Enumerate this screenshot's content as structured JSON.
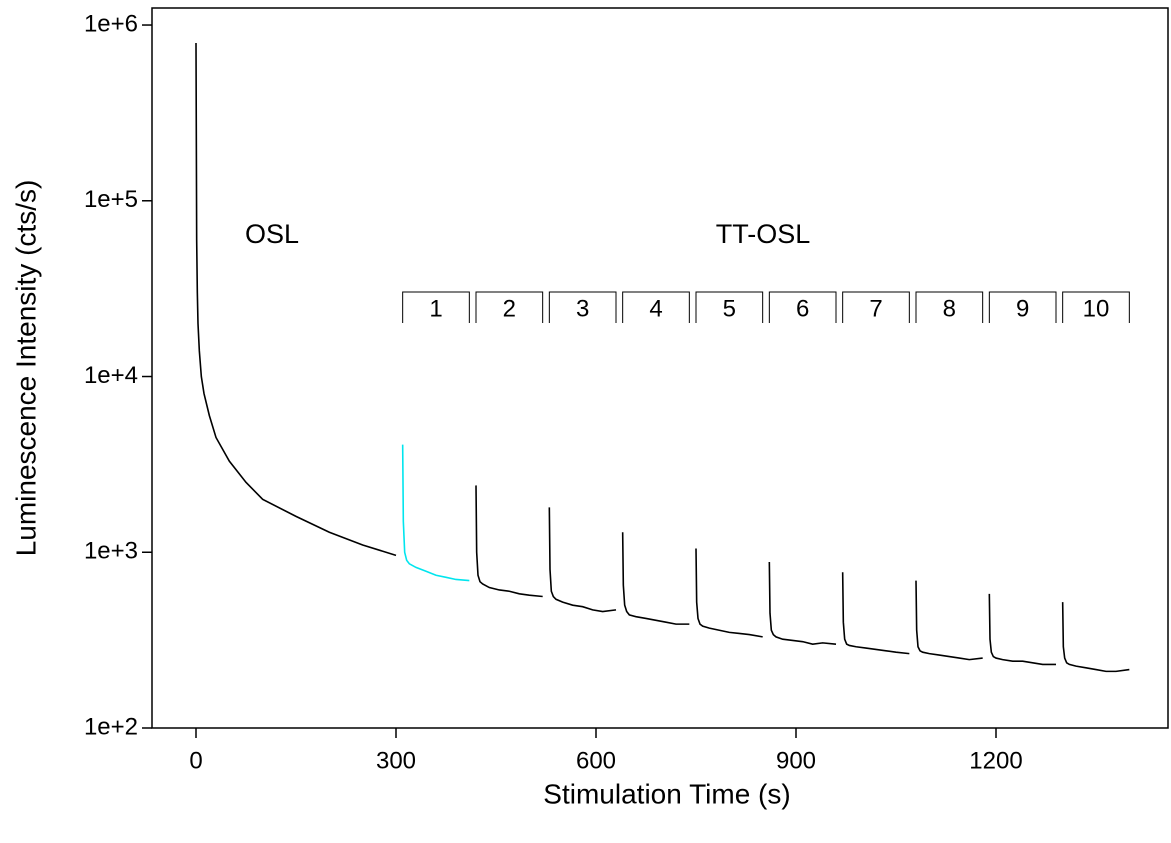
{
  "chart_data": {
    "type": "line",
    "log_y": true,
    "xlabel": "Stimulation Time (s)",
    "ylabel": "Luminescence Intensity (cts/s)",
    "annotations": [
      "OSL",
      "TT-OSL"
    ],
    "segment_labels": [
      "1",
      "2",
      "3",
      "4",
      "5",
      "6",
      "7",
      "8",
      "9",
      "10"
    ],
    "xlim": [
      -66,
      1458
    ],
    "ylim": [
      100,
      1250000
    ],
    "xticks": [
      0,
      300,
      600,
      900,
      1200
    ],
    "yticks": [
      {
        "value": 100,
        "label": "1e+2"
      },
      {
        "value": 1000,
        "label": "1e+3"
      },
      {
        "value": 10000,
        "label": "1e+4"
      },
      {
        "value": 100000,
        "label": "1e+5"
      },
      {
        "value": 1000000,
        "label": "1e+6"
      }
    ],
    "series": [
      {
        "color": "#000000",
        "x": [
          0,
          1,
          2,
          3,
          5,
          8,
          12,
          20,
          30,
          50,
          75,
          100,
          150,
          200,
          250,
          300
        ],
        "values": [
          790000,
          60000,
          30000,
          20000,
          14000,
          10000,
          8000,
          6000,
          4500,
          3300,
          2500,
          2000,
          1600,
          1300,
          1100,
          960
        ]
      },
      {
        "color": "#00e5ee",
        "x": [
          310,
          311,
          313,
          316,
          320,
          330,
          345,
          360,
          375,
          390,
          410
        ],
        "values": [
          4100,
          1500,
          1000,
          900,
          860,
          820,
          780,
          740,
          720,
          700,
          690
        ]
      },
      {
        "color": "#000000",
        "x": [
          420,
          421,
          423,
          426,
          430,
          440,
          455,
          470,
          485,
          500,
          520
        ],
        "values": [
          2400,
          1000,
          740,
          680,
          660,
          630,
          610,
          600,
          580,
          570,
          560
        ]
      },
      {
        "color": "#000000",
        "x": [
          530,
          531,
          533,
          536,
          540,
          550,
          565,
          580,
          595,
          610,
          630
        ],
        "values": [
          1800,
          800,
          600,
          560,
          540,
          520,
          500,
          490,
          470,
          460,
          470
        ]
      },
      {
        "color": "#000000",
        "x": [
          640,
          641,
          643,
          646,
          650,
          660,
          675,
          690,
          705,
          720,
          740
        ],
        "values": [
          1300,
          650,
          500,
          460,
          440,
          430,
          420,
          410,
          400,
          390,
          390
        ]
      },
      {
        "color": "#000000",
        "x": [
          750,
          751,
          753,
          756,
          760,
          770,
          785,
          800,
          815,
          830,
          850
        ],
        "values": [
          1050,
          520,
          420,
          390,
          380,
          370,
          360,
          350,
          345,
          340,
          330
        ]
      },
      {
        "color": "#000000",
        "x": [
          860,
          861,
          863,
          866,
          870,
          880,
          895,
          910,
          925,
          940,
          960
        ],
        "values": [
          880,
          450,
          360,
          340,
          330,
          320,
          315,
          310,
          300,
          305,
          300
        ]
      },
      {
        "color": "#000000",
        "x": [
          970,
          971,
          973,
          976,
          980,
          990,
          1005,
          1020,
          1035,
          1050,
          1070
        ],
        "values": [
          770,
          400,
          320,
          300,
          295,
          290,
          285,
          280,
          275,
          270,
          265
        ]
      },
      {
        "color": "#000000",
        "x": [
          1080,
          1081,
          1083,
          1086,
          1090,
          1100,
          1115,
          1130,
          1145,
          1160,
          1180
        ],
        "values": [
          690,
          360,
          290,
          275,
          270,
          265,
          260,
          255,
          250,
          245,
          250
        ]
      },
      {
        "color": "#000000",
        "x": [
          1190,
          1191,
          1193,
          1196,
          1200,
          1210,
          1225,
          1240,
          1255,
          1270,
          1290
        ],
        "values": [
          580,
          320,
          270,
          255,
          250,
          245,
          240,
          240,
          235,
          230,
          230
        ]
      },
      {
        "color": "#000000",
        "x": [
          1300,
          1301,
          1303,
          1306,
          1310,
          1320,
          1335,
          1350,
          1365,
          1380,
          1400
        ],
        "values": [
          520,
          290,
          250,
          235,
          230,
          225,
          220,
          215,
          210,
          210,
          215
        ]
      }
    ]
  }
}
